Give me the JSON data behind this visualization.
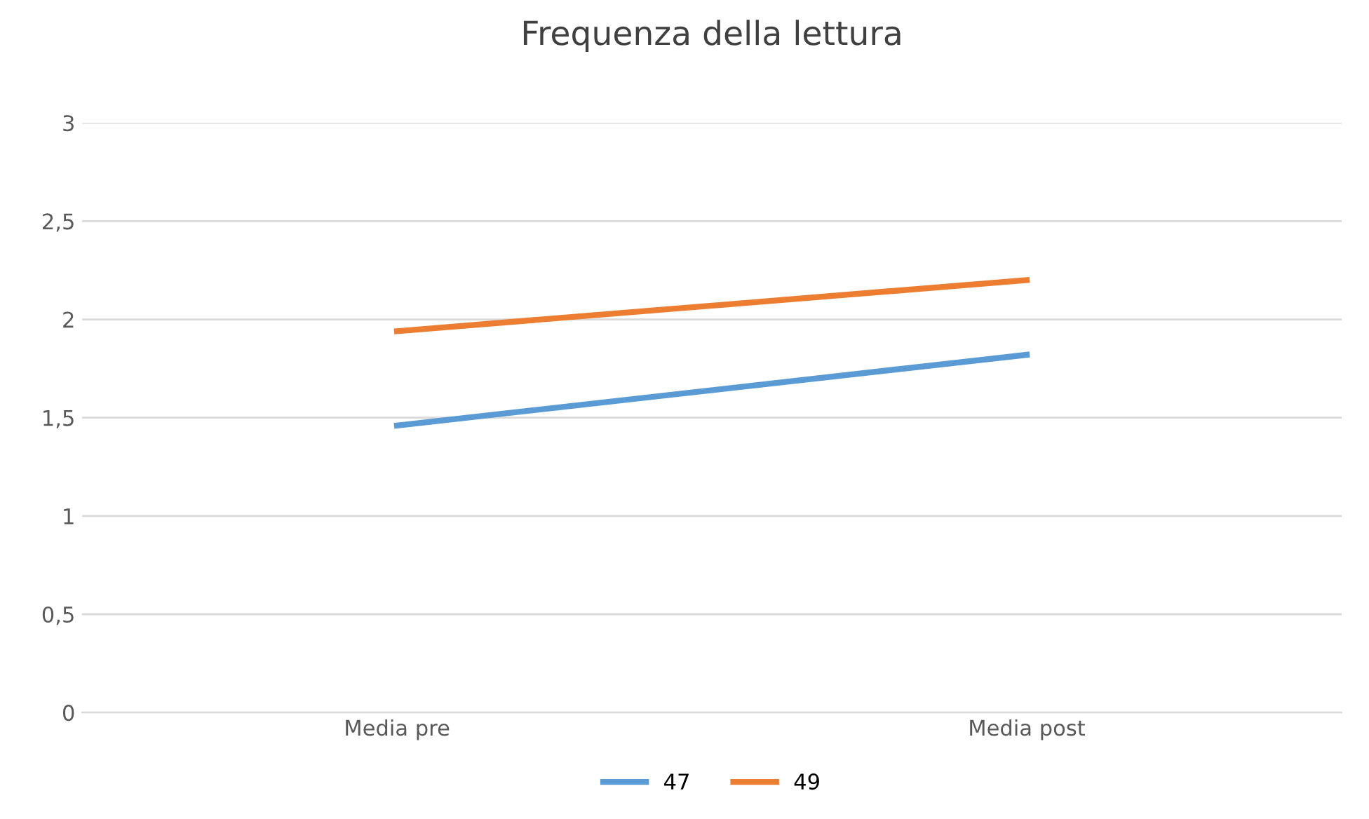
{
  "chart_data": {
    "type": "line",
    "title": "Frequenza della lettura",
    "categories": [
      "Media pre",
      "Media post"
    ],
    "series": [
      {
        "name": "47",
        "color": "#5b9bd5",
        "values": [
          1.46,
          1.82
        ]
      },
      {
        "name": "49",
        "color": "#ed7d31",
        "values": [
          1.94,
          2.2
        ]
      }
    ],
    "ylim": [
      0,
      3
    ],
    "yticks": [
      0,
      {
        "value": 0.5,
        "label": "0,5"
      },
      1,
      {
        "value": 1.5,
        "label": "1,5"
      },
      2,
      {
        "value": 2.5,
        "label": "2,5"
      },
      3
    ],
    "grid": "y",
    "legend": "bottom",
    "marker": "none",
    "line_style": "solid"
  }
}
